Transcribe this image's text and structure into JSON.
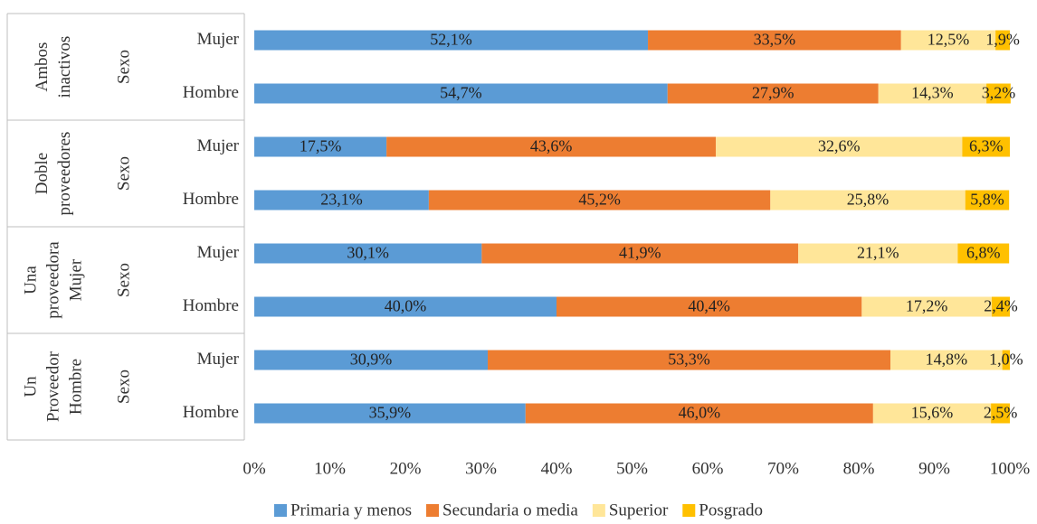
{
  "chart_data": {
    "type": "bar",
    "orientation": "horizontal",
    "stacked": true,
    "groups": [
      {
        "name": [
          "Ambos",
          "inactivos"
        ],
        "sublabel": "Sexo",
        "categories": [
          "Mujer",
          "Hombre"
        ]
      },
      {
        "name": [
          "Doble",
          "proveedores"
        ],
        "sublabel": "Sexo",
        "categories": [
          "Mujer",
          "Hombre"
        ]
      },
      {
        "name": [
          "Una",
          "proveedora",
          "Mujer"
        ],
        "sublabel": "Sexo",
        "categories": [
          "Mujer",
          "Hombre"
        ]
      },
      {
        "name": [
          "Un",
          "Proveedor",
          "Hombre"
        ],
        "sublabel": "Sexo",
        "categories": [
          "Mujer",
          "Hombre"
        ]
      }
    ],
    "series": [
      {
        "name": "Primaria y menos",
        "color": "#5b9bd5",
        "values": [
          52.1,
          54.7,
          17.5,
          23.1,
          30.1,
          40.0,
          30.9,
          35.9
        ],
        "value_labels": [
          "52,1%",
          "54,7%",
          "17,5%",
          "23,1%",
          "30,1%",
          "40,0%",
          "30,9%",
          "35,9%"
        ]
      },
      {
        "name": "Secundaria o media",
        "color": "#ed7d31",
        "values": [
          33.5,
          27.9,
          43.6,
          45.2,
          41.9,
          40.4,
          53.3,
          46.0
        ],
        "value_labels": [
          "33,5%",
          "27,9%",
          "43,6%",
          "45,2%",
          "41,9%",
          "40,4%",
          "53,3%",
          "46,0%"
        ]
      },
      {
        "name": "Superior",
        "color": "#ffe699",
        "values": [
          12.5,
          14.3,
          32.6,
          25.8,
          21.1,
          17.2,
          14.8,
          15.6
        ],
        "value_labels": [
          "12,5%",
          "14,3%",
          "32,6%",
          "25,8%",
          "21,1%",
          "17,2%",
          "14,8%",
          "15,6%"
        ]
      },
      {
        "name": "Posgrado",
        "color": "#ffc000",
        "values": [
          1.9,
          3.2,
          6.3,
          5.8,
          6.8,
          2.4,
          1.0,
          2.5
        ],
        "value_labels": [
          "1,9%",
          "3,2%",
          "6,3%",
          "5,8%",
          "6,8%",
          "2,4%",
          "1,0%",
          "2,5%"
        ]
      }
    ],
    "xlim": [
      0,
      100
    ],
    "xticks": [
      {
        "value": 0,
        "label": "0%"
      },
      {
        "value": 10,
        "label": "10%"
      },
      {
        "value": 20,
        "label": "20%"
      },
      {
        "value": 30,
        "label": "30%"
      },
      {
        "value": 40,
        "label": "40%"
      },
      {
        "value": 50,
        "label": "50%"
      },
      {
        "value": 60,
        "label": "60%"
      },
      {
        "value": 70,
        "label": "70%"
      },
      {
        "value": 80,
        "label": "80%"
      },
      {
        "value": 90,
        "label": "90%"
      },
      {
        "value": 100,
        "label": "100%"
      }
    ],
    "grid": false,
    "legend": "bottom"
  }
}
